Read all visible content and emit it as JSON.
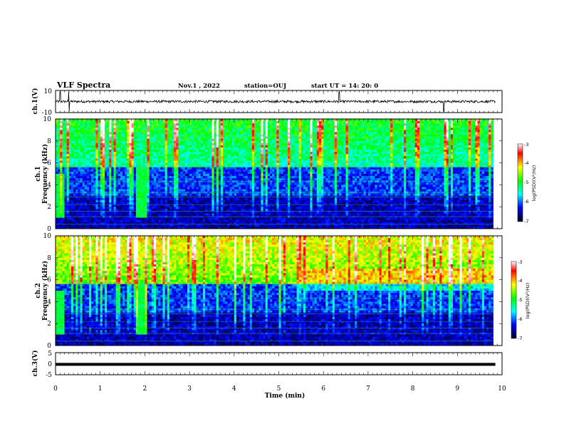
{
  "header": {
    "title": "VLF Spectra",
    "date": "Nov.1 , 2022",
    "station": "station=OUJ",
    "start_ut": "start UT = 14: 20: 0"
  },
  "chart_data": [
    {
      "type": "line",
      "title": "VLF Spectra",
      "ylabel": "ch.1(V)",
      "ylim": [
        -10,
        10
      ],
      "yticks": [
        "10",
        "-10"
      ],
      "xlim": [
        0,
        10
      ],
      "trace_level": 0,
      "spikes_min": [
        0.1,
        0.3,
        6.35,
        8.7
      ]
    },
    {
      "type": "heatmap",
      "ylabel_line1": "ch.1",
      "ylabel_line2": "Frequency (kHz)",
      "ylim": [
        0,
        10
      ],
      "yticks": [
        "0",
        "2",
        "4",
        "6",
        "8",
        "10"
      ],
      "xlim": [
        0,
        9.8
      ],
      "color_scale": {
        "label": "log(PSD)(V²/Hz)",
        "range": [
          -7,
          -3
        ],
        "ticks": [
          "-3",
          "-4",
          "-5",
          "-6",
          "-7"
        ]
      },
      "bursts_min": [
        {
          "start": 0.0,
          "end": 0.2,
          "f_low_khz": 1.0,
          "f_high_khz": 5.0
        },
        {
          "start": 1.8,
          "end": 2.05,
          "f_low_khz": 1.0,
          "f_high_khz": 5.5
        }
      ],
      "hiss_band_khz": [
        5.5,
        10
      ]
    },
    {
      "type": "heatmap",
      "ylabel_line1": "ch.2",
      "ylabel_line2": "Frequency (kHz)",
      "ylim": [
        0,
        10
      ],
      "yticks": [
        "0",
        "2",
        "4",
        "6",
        "8",
        "10"
      ],
      "xlim": [
        0,
        9.8
      ],
      "color_scale": {
        "label": "log(PSD)(V²/Hz)",
        "range": [
          -7,
          -3
        ],
        "ticks": [
          "-3",
          "-4",
          "-5",
          "-6",
          "-7"
        ]
      },
      "bursts_min": [
        {
          "start": 0.0,
          "end": 0.2,
          "f_low_khz": 1.0,
          "f_high_khz": 5.0
        },
        {
          "start": 1.8,
          "end": 2.05,
          "f_low_khz": 1.0,
          "f_high_khz": 5.5
        }
      ],
      "hiss_band_khz": [
        5.5,
        10
      ]
    },
    {
      "type": "line",
      "ylabel": "ch.3(V)",
      "ylim": [
        -5,
        5
      ],
      "yticks": [
        "5",
        "0",
        "-5"
      ],
      "xlim": [
        0,
        10
      ],
      "trace_level": -0.3
    }
  ],
  "x_axis": {
    "label": "Time (min)",
    "range": [
      0,
      10
    ],
    "ticks": [
      "0",
      "1",
      "2",
      "3",
      "4",
      "5",
      "6",
      "7",
      "8",
      "9",
      "10"
    ]
  },
  "colors": {
    "colormap": [
      "#ffffff",
      "#ff0000",
      "#ffff00",
      "#00ff00",
      "#00ffff",
      "#0000ff",
      "#000000"
    ],
    "axes": "#000000",
    "background": "#ffffff"
  }
}
